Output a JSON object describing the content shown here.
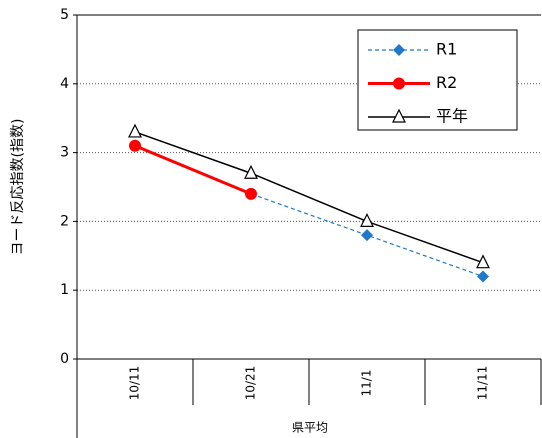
{
  "chart_data": {
    "type": "line",
    "y_label": "ヨード反応指数(指数)",
    "group_label": "県平均",
    "categories": [
      "10/11",
      "10/21",
      "11/1",
      "11/11"
    ],
    "series": [
      {
        "name": "R1",
        "color": "#1f78c8",
        "marker": "diamond",
        "dashed": true,
        "values": [
          3.1,
          2.4,
          1.8,
          1.2
        ]
      },
      {
        "name": "R2",
        "color": "#ff0000",
        "marker": "circle",
        "dashed": false,
        "values": [
          3.1,
          2.4,
          null,
          null
        ]
      },
      {
        "name": "平年",
        "color": "#000000",
        "marker": "triangle",
        "dashed": false,
        "values": [
          3.3,
          2.7,
          2.0,
          1.4
        ]
      }
    ],
    "ylim": [
      0,
      5
    ],
    "yticks": [
      0,
      1,
      2,
      3,
      4,
      5
    ],
    "grid": true,
    "legend": "upper right"
  }
}
